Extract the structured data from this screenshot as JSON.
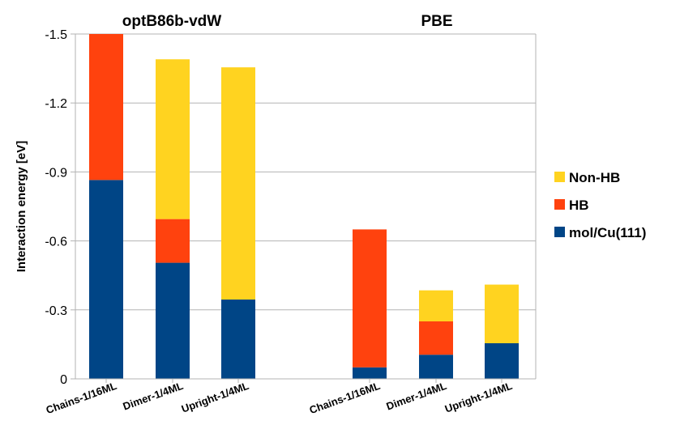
{
  "chart_data": {
    "type": "bar",
    "stacked": true,
    "ylabel": "Interaction energy [eV]",
    "ylim": [
      0,
      -1.5
    ],
    "yaxis_inverted": true,
    "yticks": [
      "-1.5",
      "-1.2",
      "-0.9",
      "-0.6",
      "-0.3",
      "0"
    ],
    "grid": true,
    "legend_position": "right",
    "groups": [
      {
        "title": "optB86b-vdW",
        "categories": [
          "Chains-1/16ML",
          "Dimer-1/4ML",
          "Upright-1/4ML"
        ],
        "series": [
          {
            "name": "mol/Cu(111)",
            "color": "#004586",
            "values": [
              -0.865,
              -0.505,
              -0.345
            ]
          },
          {
            "name": "HB",
            "color": "#ff420e",
            "values": [
              -0.635,
              -0.19,
              0
            ]
          },
          {
            "name": "Non-HB",
            "color": "#ffd320",
            "values": [
              0,
              -0.695,
              -1.01
            ]
          }
        ]
      },
      {
        "title": "PBE",
        "categories": [
          "Chains-1/16ML",
          "Dimer-1/4ML",
          "Upright-1/4ML"
        ],
        "series": [
          {
            "name": "mol/Cu(111)",
            "color": "#004586",
            "values": [
              -0.05,
              -0.105,
              -0.155
            ]
          },
          {
            "name": "HB",
            "color": "#ff420e",
            "values": [
              -0.6,
              -0.145,
              0
            ]
          },
          {
            "name": "Non-HB",
            "color": "#ffd320",
            "values": [
              0,
              -0.135,
              -0.255
            ]
          }
        ]
      }
    ],
    "legend": [
      {
        "name": "Non-HB",
        "color": "#ffd320"
      },
      {
        "name": "HB",
        "color": "#ff420e"
      },
      {
        "name": "mol/Cu(111)",
        "color": "#004586"
      }
    ]
  }
}
